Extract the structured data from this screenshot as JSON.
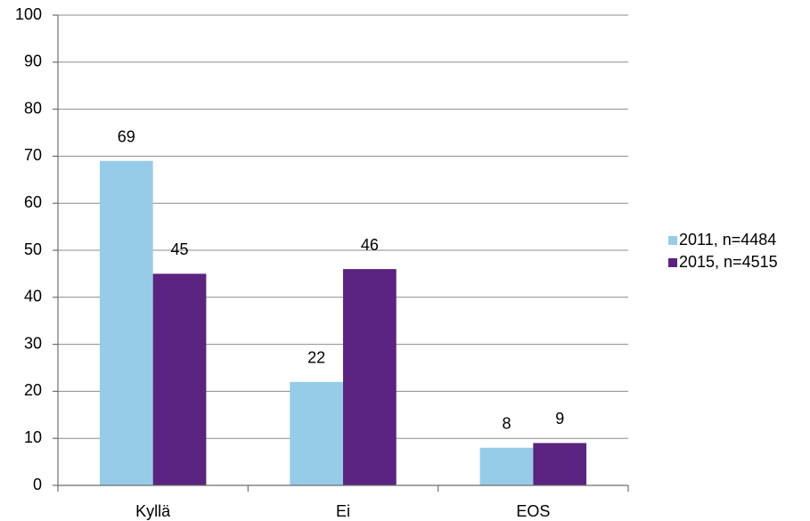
{
  "chart_data": {
    "type": "bar",
    "categories": [
      "Kyllä",
      "Ei",
      "EOS"
    ],
    "series": [
      {
        "name": "2011, n=4484",
        "color": "#97cce8",
        "values": [
          69,
          22,
          8
        ]
      },
      {
        "name": "2015, n=4515",
        "color": "#5a2480",
        "values": [
          45,
          46,
          9
        ]
      }
    ],
    "ylim": [
      0,
      100
    ],
    "yticks": [
      0,
      10,
      20,
      30,
      40,
      50,
      60,
      70,
      80,
      90,
      100
    ],
    "grid": true,
    "legend": "right"
  }
}
